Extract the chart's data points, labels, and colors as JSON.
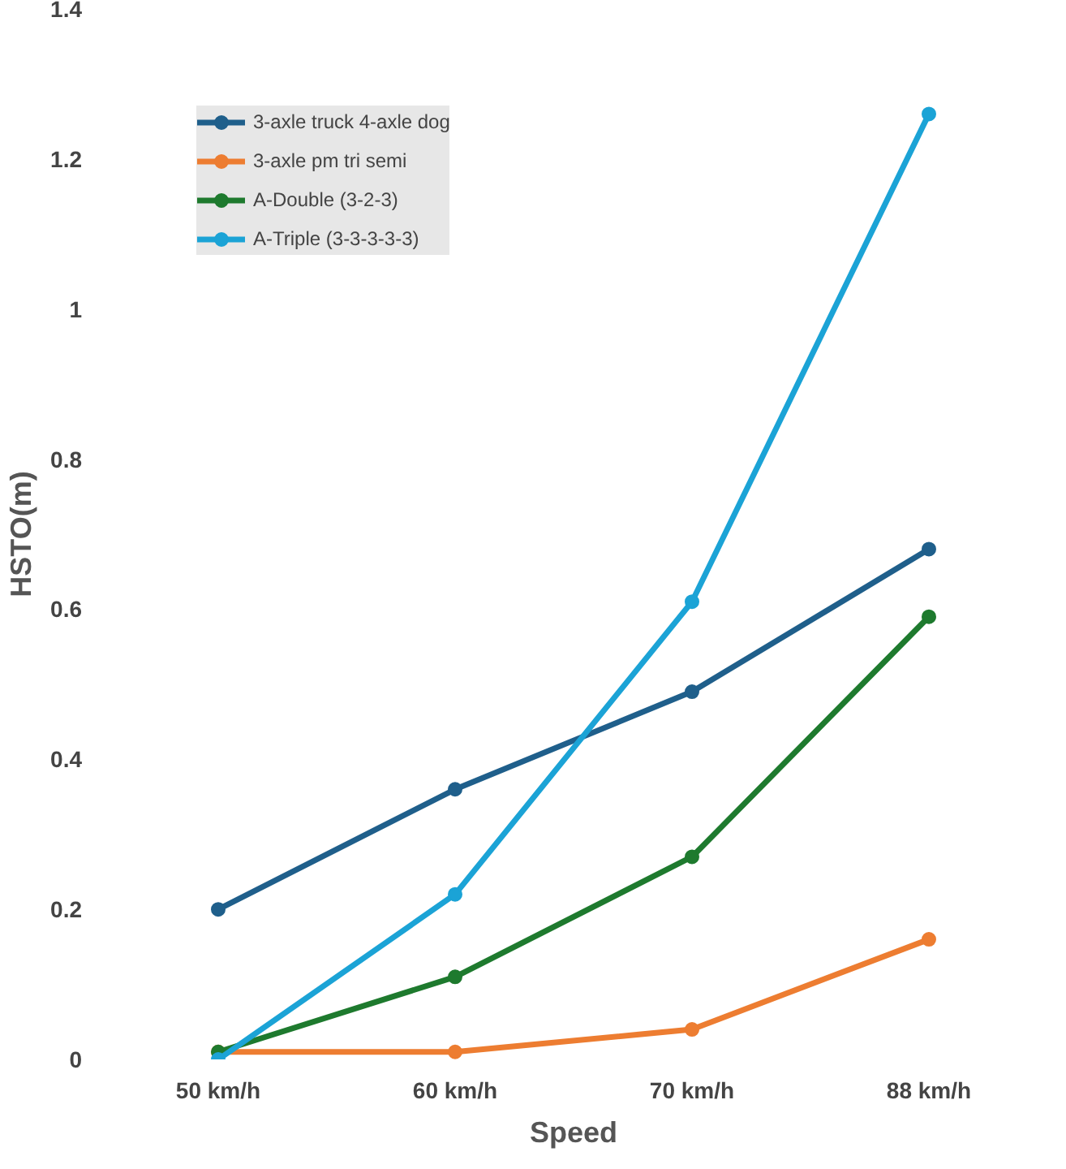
{
  "chart_data": {
    "type": "line",
    "xlabel": "Speed",
    "ylabel": "HSTO(m)",
    "categories": [
      "50 km/h",
      "60 km/h",
      "70 km/h",
      "88 km/h"
    ],
    "series": [
      {
        "name": "3-axle truck 4-axle dog",
        "color": "#1f5f8b",
        "values": [
          0.2,
          0.36,
          0.49,
          0.68
        ]
      },
      {
        "name": "3-axle pm tri semi",
        "color": "#ed7d31",
        "values": [
          0.01,
          0.01,
          0.04,
          0.16
        ]
      },
      {
        "name": "A-Double (3-2-3)",
        "color": "#1e7a2e",
        "values": [
          0.01,
          0.11,
          0.27,
          0.59
        ]
      },
      {
        "name": "A-Triple (3-3-3-3-3)",
        "color": "#1ba3d6",
        "values": [
          0.0,
          0.22,
          0.61,
          1.26
        ]
      }
    ],
    "ylim": [
      0,
      1.4
    ],
    "yticks": [
      0,
      0.2,
      0.4,
      0.6,
      0.8,
      1,
      1.2,
      1.4
    ],
    "grid": false,
    "legend": "top left",
    "marker": "circle",
    "line_style": "solid"
  }
}
